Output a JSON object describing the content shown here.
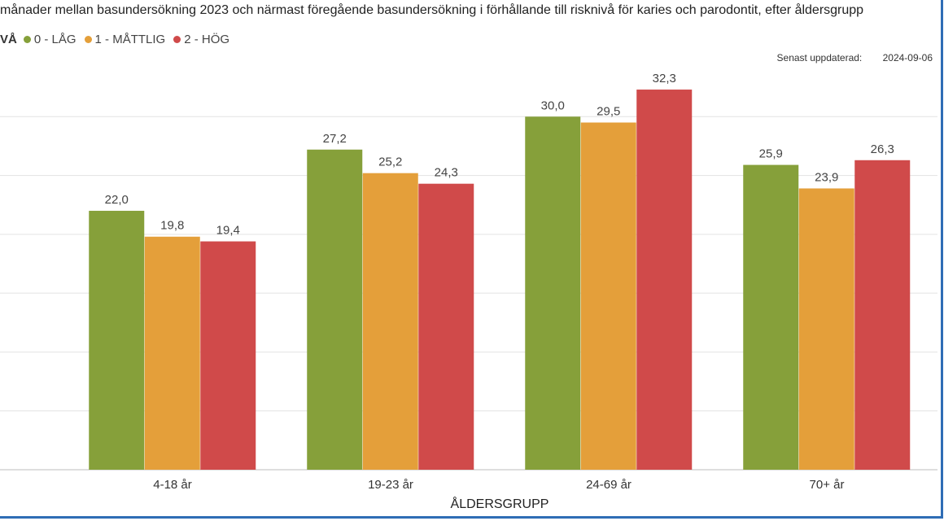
{
  "title": "månader mellan basundersökning 2023 och närmast föregående basundersökning i förhållande till risknivå för karies och parodontit, efter åldersgrupp",
  "legend": {
    "title": "VÅ",
    "items": [
      {
        "label": "0 - LÅG",
        "color": "#86a03a"
      },
      {
        "label": "1 - MÅTTLIG",
        "color": "#e49f3a"
      },
      {
        "label": "2 - HÖG",
        "color": "#d04a4a"
      }
    ]
  },
  "updated": {
    "label": "Senast uppdaterad:",
    "value": "2024-09-06"
  },
  "chart_data": {
    "type": "bar",
    "categories": [
      "4-18 år",
      "19-23 år",
      "24-69 år",
      "70+ år"
    ],
    "series": [
      {
        "name": "0 - LÅG",
        "values": [
          22.0,
          27.2,
          30.0,
          25.9
        ],
        "labels": [
          "22,0",
          "27,2",
          "30,0",
          "25,9"
        ],
        "color": "#86a03a"
      },
      {
        "name": "1 - MÅTTLIG",
        "values": [
          19.8,
          25.2,
          29.5,
          23.9
        ],
        "labels": [
          "19,8",
          "25,2",
          "29,5",
          "23,9"
        ],
        "color": "#e49f3a"
      },
      {
        "name": "2 - HÖG",
        "values": [
          19.4,
          24.3,
          32.3,
          26.3
        ],
        "labels": [
          "19,4",
          "24,3",
          "32,3",
          "26,3"
        ],
        "color": "#d04a4a"
      }
    ],
    "xlabel": "ÅLDERSGRUPP",
    "ylim": [
      0,
      35
    ],
    "grid": true
  }
}
